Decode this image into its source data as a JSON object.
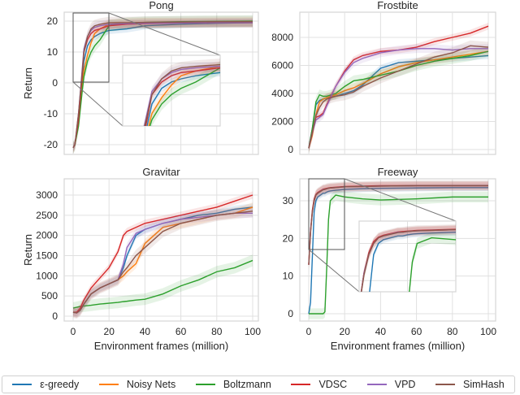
{
  "legend": [
    {
      "label": "ε-greedy",
      "color": "#1f77b4"
    },
    {
      "label": "Noisy Nets",
      "color": "#ff7f0e"
    },
    {
      "label": "Boltzmann",
      "color": "#2ca02c"
    },
    {
      "label": "VDSC",
      "color": "#d62728"
    },
    {
      "label": "VPD",
      "color": "#9467bd"
    },
    {
      "label": "SimHash",
      "color": "#8c564b"
    }
  ],
  "chart_data": [
    {
      "type": "line",
      "title": "Pong",
      "xlabel": "",
      "ylabel": "Return",
      "xlim": [
        0,
        100
      ],
      "ylim": [
        -22,
        22.5
      ],
      "grid": true,
      "xticks": [
        0,
        20,
        40,
        60,
        80,
        100
      ],
      "show_xtick_labels": false,
      "yticks": [
        -20,
        -10,
        0,
        10,
        20
      ],
      "inset": {
        "xrange": [
          0,
          20
        ],
        "yrange": [
          0,
          22.5
        ]
      },
      "x": [
        0,
        1,
        3,
        5,
        6,
        8,
        10,
        12,
        15,
        20,
        30,
        40,
        60,
        80,
        100
      ],
      "series": [
        {
          "name": "ε-greedy",
          "values": [
            -21,
            -20,
            -12,
            0,
            7,
            12,
            14,
            15,
            16,
            17,
            17.5,
            18.5,
            19,
            19.3,
            19.5
          ]
        },
        {
          "name": "Noisy Nets",
          "values": [
            -21,
            -20,
            -13,
            -2,
            4,
            9,
            13,
            16,
            17.5,
            19,
            19.3,
            19.5,
            19.5,
            19.6,
            19.7
          ]
        },
        {
          "name": "Boltzmann",
          "values": [
            -21,
            -20,
            -14,
            -3,
            2,
            7,
            10,
            12,
            14,
            18.5,
            19.3,
            19.6,
            19.8,
            19.9,
            20
          ]
        },
        {
          "name": "VDSC",
          "values": [
            -21,
            -20,
            -12,
            2,
            10,
            14,
            16,
            17,
            17.5,
            18.5,
            19,
            19.2,
            19.4,
            19.5,
            19.5
          ]
        },
        {
          "name": "VPD",
          "values": [
            -21,
            -20,
            -10,
            4,
            11,
            15,
            17,
            18,
            18.5,
            19,
            19.2,
            19.3,
            19.4,
            19.5,
            19.5
          ]
        },
        {
          "name": "SimHash",
          "values": [
            -21,
            -20,
            -10,
            3,
            10,
            15,
            17.5,
            18.5,
            19,
            19.5,
            19.5,
            19.6,
            19.7,
            19.8,
            19.8
          ]
        }
      ]
    },
    {
      "type": "line",
      "title": "Frostbite",
      "xlabel": "",
      "ylabel": "",
      "xlim": [
        0,
        100
      ],
      "ylim": [
        -300,
        9700
      ],
      "grid": true,
      "xticks": [
        0,
        20,
        40,
        60,
        80,
        100
      ],
      "show_xtick_labels": false,
      "yticks": [
        0,
        2000,
        4000,
        6000,
        8000
      ],
      "x": [
        0,
        2,
        4,
        6,
        8,
        10,
        15,
        20,
        25,
        30,
        40,
        50,
        60,
        70,
        80,
        90,
        100
      ],
      "series": [
        {
          "name": "ε-greedy",
          "values": [
            100,
            1500,
            3200,
            3500,
            3600,
            3700,
            3800,
            4000,
            4200,
            4600,
            5800,
            6200,
            6300,
            6400,
            6500,
            6600,
            6700
          ]
        },
        {
          "name": "Noisy Nets",
          "values": [
            100,
            1000,
            2500,
            3400,
            3600,
            3700,
            3900,
            4200,
            4400,
            4700,
            5400,
            5900,
            6200,
            6400,
            6600,
            6800,
            7000
          ]
        },
        {
          "name": "Boltzmann",
          "values": [
            100,
            1500,
            3400,
            3900,
            3800,
            3800,
            4000,
            4500,
            4900,
            5000,
            5300,
            5600,
            6000,
            6300,
            6500,
            6700,
            7000
          ]
        },
        {
          "name": "VDSC",
          "values": [
            100,
            1200,
            2300,
            2400,
            2600,
            3200,
            4500,
            5600,
            6400,
            6700,
            7000,
            7100,
            7300,
            7700,
            8000,
            8300,
            8800
          ]
        },
        {
          "name": "VPD",
          "values": [
            100,
            1200,
            2100,
            2300,
            2500,
            3100,
            4500,
            5500,
            6200,
            6500,
            6900,
            7100,
            7200,
            7200,
            7100,
            7200,
            7200
          ]
        },
        {
          "name": "SimHash",
          "values": [
            100,
            1200,
            2400,
            3000,
            3400,
            3600,
            3800,
            3900,
            4100,
            4500,
            5100,
            5600,
            6100,
            6600,
            6900,
            7400,
            7300
          ]
        }
      ]
    },
    {
      "type": "line",
      "title": "Gravitar",
      "xlabel": "Environment frames (million)",
      "ylabel": "Return",
      "xlim": [
        -4,
        103
      ],
      "ylim": [
        -100,
        3300
      ],
      "grid": true,
      "xticks": [
        0,
        20,
        40,
        60,
        80,
        100
      ],
      "show_xtick_labels": true,
      "yticks": [
        0,
        500,
        1000,
        1500,
        2000,
        2500,
        3000
      ],
      "x": [
        0,
        2,
        4,
        6,
        10,
        15,
        20,
        25,
        28,
        30,
        35,
        40,
        50,
        60,
        70,
        80,
        90,
        100
      ],
      "series": [
        {
          "name": "ε-greedy",
          "values": [
            100,
            80,
            150,
            300,
            550,
            700,
            800,
            900,
            1200,
            1500,
            2000,
            2150,
            2300,
            2400,
            2500,
            2550,
            2650,
            2700
          ]
        },
        {
          "name": "Noisy Nets",
          "values": [
            100,
            80,
            150,
            300,
            550,
            700,
            800,
            900,
            1000,
            1100,
            1300,
            1800,
            2200,
            2300,
            2400,
            2500,
            2550,
            2700
          ]
        },
        {
          "name": "Boltzmann",
          "values": [
            200,
            220,
            240,
            250,
            270,
            300,
            320,
            340,
            360,
            370,
            400,
            420,
            550,
            750,
            900,
            1100,
            1200,
            1380
          ]
        },
        {
          "name": "VDSC",
          "values": [
            100,
            100,
            200,
            400,
            700,
            950,
            1200,
            1600,
            2000,
            2100,
            2200,
            2300,
            2400,
            2500,
            2600,
            2700,
            2850,
            3000
          ]
        },
        {
          "name": "VPD",
          "values": [
            100,
            80,
            150,
            300,
            550,
            700,
            800,
            900,
            1300,
            1700,
            2050,
            2150,
            2300,
            2400,
            2450,
            2500,
            2550,
            2550
          ]
        },
        {
          "name": "SimHash",
          "values": [
            100,
            80,
            150,
            300,
            550,
            700,
            800,
            900,
            1100,
            1200,
            1500,
            1700,
            2100,
            2300,
            2400,
            2500,
            2550,
            2600
          ]
        }
      ]
    },
    {
      "type": "line",
      "title": "Freeway",
      "xlabel": "Environment frames (million)",
      "ylabel": "",
      "xlim": [
        -4,
        104
      ],
      "ylim": [
        -2,
        36
      ],
      "grid": true,
      "xticks": [
        0,
        20,
        40,
        60,
        80,
        100
      ],
      "show_xtick_labels": true,
      "yticks": [
        0,
        10,
        20,
        30
      ],
      "inset": {
        "xrange": [
          0,
          20
        ],
        "yrange": [
          17,
          36
        ]
      },
      "x": [
        0,
        1,
        2,
        3,
        4,
        5,
        8,
        9,
        10,
        11,
        12,
        15,
        20,
        30,
        40,
        60,
        80,
        100
      ],
      "series": [
        {
          "name": "ε-greedy",
          "values": [
            0,
            3,
            15,
            27,
            30,
            31,
            32,
            32,
            32.3,
            32.5,
            32.6,
            32.8,
            33,
            33.2,
            33.3,
            33.4,
            33.5,
            33.5
          ]
        },
        {
          "name": "Noisy Nets",
          "values": [
            13,
            22,
            27,
            30,
            31.5,
            32,
            33,
            33,
            33.2,
            33.3,
            33.4,
            33.5,
            33.7,
            33.8,
            33.9,
            34,
            34,
            34
          ]
        },
        {
          "name": "Boltzmann",
          "values": [
            0,
            0,
            0,
            0,
            0,
            0,
            0,
            0.5,
            12,
            25,
            30,
            31.5,
            31,
            30.5,
            30.2,
            30.5,
            31,
            31
          ]
        },
        {
          "name": "VDSC",
          "values": [
            13,
            22,
            27.5,
            30.5,
            31.7,
            32.2,
            33.1,
            33.2,
            33.3,
            33.4,
            33.5,
            33.6,
            33.8,
            33.9,
            34,
            34,
            34,
            34
          ]
        },
        {
          "name": "VPD",
          "values": [
            13,
            22,
            27,
            30,
            31.5,
            32,
            33,
            33,
            33.2,
            33.3,
            33.4,
            33.5,
            33.7,
            33.8,
            33.9,
            34,
            34,
            34
          ]
        },
        {
          "name": "SimHash",
          "values": [
            13,
            21.5,
            27,
            30,
            31.5,
            32,
            32.9,
            33,
            33.2,
            33.3,
            33.4,
            33.5,
            33.7,
            33.8,
            33.9,
            34,
            34,
            34
          ]
        }
      ]
    }
  ]
}
